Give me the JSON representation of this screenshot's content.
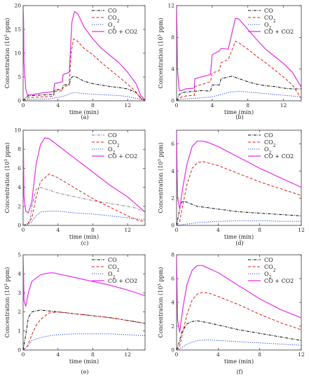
{
  "chart_data": [
    {
      "type": "line",
      "panel_label": "(a)",
      "xlabel": "time (min)",
      "ylabel": "Concentration (10³ ppm)",
      "xlim": [
        0,
        14
      ],
      "ylim": [
        0,
        20
      ],
      "xticks": [
        "0",
        "4",
        "8",
        "12"
      ],
      "yticks": [
        "0",
        "5",
        "10",
        "15",
        "20"
      ],
      "legend_position": "top-right",
      "series": [
        {
          "name": "CO",
          "color": "#000000",
          "dash": "dashdot",
          "x": [
            0,
            0.2,
            0.5,
            1,
            2,
            3,
            3.5,
            3.6,
            4.5,
            4.6,
            5.3,
            5.5,
            5.8,
            6.2,
            7,
            8,
            9,
            10,
            11,
            12,
            13,
            13.5,
            14
          ],
          "y": [
            0,
            0.5,
            1.0,
            1.1,
            1.2,
            1.3,
            1.4,
            2.3,
            2.4,
            3.3,
            3.5,
            4.8,
            5.2,
            4.9,
            4.1,
            3.6,
            3.3,
            3.0,
            2.8,
            2.5,
            1.7,
            0.6,
            0.1
          ]
        },
        {
          "name": "CO2",
          "color": "#e0201b",
          "dash": "dashed",
          "x": [
            0,
            0.2,
            0.5,
            1,
            2,
            3,
            3.5,
            3.6,
            4.5,
            4.6,
            5.3,
            5.5,
            5.8,
            6.2,
            7,
            8,
            9,
            10,
            11,
            12,
            13,
            13.5,
            14
          ],
          "y": [
            0,
            0.3,
            0.6,
            0.7,
            0.8,
            0.9,
            1.0,
            2.0,
            2.1,
            3.0,
            3.2,
            10.0,
            13.0,
            12.6,
            11.0,
            9.7,
            8.0,
            6.5,
            5.0,
            3.5,
            1.8,
            0.5,
            0.1
          ]
        },
        {
          "name": "O2",
          "color": "#1e3fd6",
          "dash": "dotted",
          "x": [
            0,
            0.3,
            1,
            3,
            3.6,
            4.6,
            5.5,
            6,
            7,
            9,
            11,
            12,
            13,
            14
          ],
          "y": [
            0,
            0.2,
            0.3,
            0.4,
            0.6,
            0.9,
            1.6,
            1.7,
            1.5,
            1.3,
            1.1,
            0.9,
            0.5,
            0.1
          ]
        },
        {
          "name": "CO + CO2",
          "color": "#e52ce5",
          "dash": "solid",
          "x": [
            0,
            0.05,
            0.1,
            0.3,
            0.5,
            1,
            2,
            3,
            3.5,
            3.6,
            4.5,
            4.6,
            5.3,
            5.6,
            5.9,
            6.3,
            7,
            8,
            9,
            10,
            11,
            12,
            13,
            13.5,
            14
          ],
          "y": [
            20,
            17,
            8,
            2.5,
            1.2,
            1.3,
            1.6,
            1.8,
            2.0,
            3.6,
            4.0,
            5.5,
            6.0,
            16.5,
            18.8,
            18.2,
            15.5,
            13.0,
            11.0,
            9.5,
            8.0,
            6.0,
            3.5,
            1.1,
            0.2
          ]
        }
      ]
    },
    {
      "type": "line",
      "panel_label": "(b)",
      "xlabel": "time (min)",
      "ylabel": "Concentration (10³ ppm)",
      "xlim": [
        0,
        14
      ],
      "ylim": [
        0,
        12
      ],
      "xticks": [
        "0",
        "4",
        "8",
        "12"
      ],
      "yticks": [
        "0",
        "4",
        "8",
        "12"
      ],
      "legend_position": "top-right",
      "series": [
        {
          "name": "CO",
          "color": "#000000",
          "dash": "dashdot",
          "x": [
            0,
            0.3,
            0.6,
            1,
            2,
            3,
            3.8,
            4,
            4.8,
            5,
            5.8,
            6.2,
            7,
            8,
            9,
            10,
            11,
            12,
            13,
            14
          ],
          "y": [
            0,
            0.8,
            1.0,
            1.1,
            1.2,
            1.3,
            1.2,
            2.0,
            2.0,
            2.8,
            3.0,
            3.1,
            2.8,
            2.4,
            2.1,
            1.9,
            1.8,
            1.6,
            1.5,
            1.5
          ]
        },
        {
          "name": "CO2",
          "color": "#e0201b",
          "dash": "dashed",
          "x": [
            0,
            0.3,
            0.6,
            1,
            2,
            2.05,
            3.8,
            4,
            4.8,
            5,
            5.8,
            6.6,
            7,
            8,
            9,
            10,
            11,
            12,
            13,
            14
          ],
          "y": [
            0,
            0.3,
            0.5,
            0.6,
            0.7,
            1.8,
            2.4,
            3.5,
            3.8,
            4.8,
            5.2,
            7.5,
            7.3,
            6.5,
            5.6,
            4.8,
            3.9,
            3.0,
            2.0,
            0.3
          ]
        },
        {
          "name": "O2",
          "color": "#1e3fd6",
          "dash": "dotted",
          "x": [
            0,
            0.5,
            2,
            4,
            5,
            6,
            7,
            8,
            10,
            12,
            13,
            14
          ],
          "y": [
            0,
            0.2,
            0.3,
            0.5,
            0.8,
            1.1,
            1.2,
            1.1,
            0.9,
            0.7,
            0.6,
            0.5
          ]
        },
        {
          "name": "CO + CO2",
          "color": "#e52ce5",
          "dash": "solid",
          "x": [
            0,
            0.05,
            0.1,
            0.3,
            0.6,
            1,
            2,
            2.05,
            3.8,
            4,
            4.8,
            5,
            5.8,
            6.6,
            7,
            8,
            9,
            10,
            11,
            12,
            13,
            14
          ],
          "y": [
            12,
            9,
            4,
            1.3,
            1.3,
            1.5,
            1.6,
            2.8,
            3.3,
            5.8,
            6.3,
            6.6,
            6.5,
            10.4,
            10.3,
            9.0,
            7.7,
            6.5,
            5.6,
            4.7,
            3.6,
            1.7
          ]
        }
      ]
    },
    {
      "type": "line",
      "panel_label": "(c)",
      "xlabel": "time (min)",
      "ylabel": "Concentration (10³ ppm)",
      "xlim": [
        0,
        14
      ],
      "ylim": [
        0,
        10
      ],
      "xticks": [
        "0",
        "4",
        "8",
        "12"
      ],
      "yticks": [
        "0",
        "2",
        "4",
        "6",
        "8",
        "10"
      ],
      "legend_position": "top-right",
      "series": [
        {
          "name": "CO",
          "color": "#808080",
          "dash": "dashdot",
          "x": [
            0,
            0.5,
            0.8,
            1,
            1.5,
            2,
            3,
            4,
            6,
            8,
            10,
            12,
            13,
            14
          ],
          "y": [
            0,
            0.2,
            0.5,
            2.0,
            3.8,
            4.0,
            3.7,
            3.4,
            3.0,
            2.6,
            2.3,
            2.0,
            1.8,
            1.4
          ]
        },
        {
          "name": "CO2",
          "color": "#e0201b",
          "dash": "dashed",
          "x": [
            0,
            0.5,
            1,
            1.5,
            2,
            3,
            4,
            6,
            8,
            10,
            12,
            13,
            14
          ],
          "y": [
            0,
            0.1,
            0.8,
            3.0,
            4.6,
            5.4,
            5.0,
            3.9,
            2.8,
            1.9,
            1.0,
            0.6,
            0.4
          ]
        },
        {
          "name": "O2",
          "color": "#1e3fd6",
          "dash": "dotted",
          "x": [
            0,
            0.5,
            1,
            1.5,
            2,
            3,
            4,
            6,
            8,
            10,
            12,
            14
          ],
          "y": [
            0,
            0.1,
            0.4,
            1.0,
            1.4,
            1.5,
            1.5,
            1.3,
            1.2,
            1.0,
            0.8,
            0.6
          ]
        },
        {
          "name": "CO + CO2",
          "color": "#e52ce5",
          "dash": "solid",
          "x": [
            0,
            0.05,
            0.1,
            0.3,
            0.6,
            1,
            1.5,
            2,
            2.5,
            3,
            4,
            6,
            8,
            10,
            12,
            13,
            14
          ],
          "y": [
            10,
            7,
            3,
            1.5,
            1.3,
            2.5,
            6.5,
            8.5,
            9.2,
            9.1,
            8.4,
            7.0,
            5.6,
            4.2,
            3.0,
            2.2,
            1.4
          ]
        }
      ]
    },
    {
      "type": "line",
      "panel_label": "(d)",
      "xlabel": "time (min)",
      "ylabel": "Concentration (10³ ppm)",
      "xlim": [
        0,
        12
      ],
      "ylim": [
        0,
        7
      ],
      "xticks": [
        "0",
        "4",
        "8",
        "12"
      ],
      "yticks": [
        "0",
        "2",
        "4",
        "6"
      ],
      "legend_position": "top-right",
      "series": [
        {
          "name": "CO",
          "color": "#000000",
          "dash": "dashdot",
          "x": [
            0,
            0.2,
            0.4,
            0.6,
            1,
            2,
            4,
            6,
            8,
            10,
            12
          ],
          "y": [
            0,
            0.8,
            1.6,
            1.8,
            1.7,
            1.4,
            1.2,
            1.0,
            0.9,
            0.8,
            0.7
          ]
        },
        {
          "name": "CO2",
          "color": "#e0201b",
          "dash": "dashed",
          "x": [
            0,
            0.3,
            0.6,
            1,
            1.5,
            2,
            2.5,
            3,
            4,
            6,
            8,
            10,
            12
          ],
          "y": [
            0,
            0.3,
            1.5,
            3.0,
            4.2,
            4.6,
            4.7,
            4.6,
            4.4,
            3.8,
            3.2,
            2.7,
            2.2
          ]
        },
        {
          "name": "O2",
          "color": "#1e3fd6",
          "dash": "dotted",
          "x": [
            0,
            0.5,
            1,
            2,
            4,
            6,
            8,
            10,
            12
          ],
          "y": [
            0,
            0.05,
            0.1,
            0.2,
            0.3,
            0.35,
            0.35,
            0.3,
            0.3
          ]
        },
        {
          "name": "CO + CO2",
          "color": "#e52ce5",
          "dash": "solid",
          "x": [
            0,
            0.05,
            0.1,
            0.3,
            0.6,
            1,
            1.5,
            2,
            2.5,
            3,
            4,
            6,
            8,
            10,
            12
          ],
          "y": [
            7,
            4,
            2,
            1.2,
            2.8,
            4.5,
            5.8,
            6.2,
            6.2,
            6.1,
            5.8,
            5.0,
            4.2,
            3.5,
            2.8
          ]
        }
      ]
    },
    {
      "type": "line",
      "panel_label": "(e)",
      "xlabel": "time (min)",
      "ylabel": "Concentration (10³ ppm)",
      "xlim": [
        0,
        14
      ],
      "ylim": [
        0,
        5
      ],
      "xticks": [
        "0",
        "4",
        "8",
        "12"
      ],
      "yticks": [
        "0",
        "1",
        "2",
        "3",
        "4",
        "5"
      ],
      "legend_position": "top-right",
      "series": [
        {
          "name": "CO",
          "color": "#000000",
          "dash": "dashdot",
          "x": [
            0,
            0.3,
            0.6,
            1,
            1.5,
            2,
            3,
            4,
            6,
            8,
            10,
            12,
            14
          ],
          "y": [
            0,
            0.8,
            1.7,
            2.0,
            2.05,
            2.1,
            2.05,
            2.0,
            1.9,
            1.8,
            1.7,
            1.55,
            1.4
          ]
        },
        {
          "name": "CO2",
          "color": "#e0201b",
          "dash": "dashed",
          "x": [
            0,
            0.5,
            1,
            1.5,
            2,
            3,
            4,
            5,
            6,
            8,
            10,
            12,
            14
          ],
          "y": [
            0,
            0.2,
            0.8,
            1.3,
            1.6,
            1.95,
            2.0,
            1.95,
            1.9,
            1.8,
            1.7,
            1.55,
            1.4
          ]
        },
        {
          "name": "O2",
          "color": "#1e3fd6",
          "dash": "dotted",
          "x": [
            0,
            0.5,
            1,
            2,
            3,
            4,
            6,
            8,
            10,
            12,
            14
          ],
          "y": [
            0,
            0.2,
            0.5,
            0.65,
            0.75,
            0.8,
            0.85,
            0.85,
            0.85,
            0.8,
            0.75
          ]
        },
        {
          "name": "CO + CO2",
          "color": "#e52ce5",
          "dash": "solid",
          "x": [
            0,
            0.05,
            0.1,
            0.3,
            0.6,
            1,
            2,
            3,
            3.5,
            4,
            6,
            8,
            10,
            12,
            14
          ],
          "y": [
            5,
            4,
            2.6,
            2.3,
            3.0,
            3.6,
            3.95,
            4.05,
            4.05,
            4.0,
            3.8,
            3.6,
            3.4,
            3.15,
            2.85
          ]
        }
      ]
    },
    {
      "type": "line",
      "panel_label": "(f)",
      "xlabel": "time (min)",
      "ylabel": "Concentration (10³ ppm)",
      "xlim": [
        0,
        12
      ],
      "ylim": [
        0,
        8
      ],
      "xticks": [
        "0",
        "4",
        "8",
        "12"
      ],
      "yticks": [
        "0",
        "2",
        "4",
        "6",
        "8"
      ],
      "legend_position": "top-right",
      "series": [
        {
          "name": "CO",
          "color": "#000000",
          "dash": "dashdot",
          "x": [
            0,
            0.2,
            0.5,
            1,
            1.5,
            2,
            3,
            4,
            6,
            8,
            10,
            12
          ],
          "y": [
            0,
            0.5,
            1.5,
            2.2,
            2.4,
            2.45,
            2.3,
            2.1,
            1.7,
            1.4,
            1.1,
            0.8
          ]
        },
        {
          "name": "CO2",
          "color": "#e0201b",
          "dash": "dashed",
          "x": [
            0,
            0.3,
            0.6,
            1,
            1.5,
            2,
            2.5,
            3,
            4,
            6,
            8,
            10,
            12
          ],
          "y": [
            0,
            0.3,
            1.5,
            3.0,
            4.2,
            4.7,
            4.85,
            4.8,
            4.5,
            3.8,
            3.0,
            2.3,
            1.7
          ]
        },
        {
          "name": "O2",
          "color": "#1e3fd6",
          "dash": "dotted",
          "x": [
            0,
            0.5,
            1,
            2,
            3,
            4,
            6,
            8,
            10,
            12
          ],
          "y": [
            0,
            0.2,
            0.5,
            0.8,
            0.85,
            0.8,
            0.7,
            0.6,
            0.5,
            0.4
          ]
        },
        {
          "name": "CO + CO2",
          "color": "#e52ce5",
          "dash": "solid",
          "x": [
            0,
            0.05,
            0.1,
            0.3,
            0.6,
            1,
            1.5,
            2,
            2.5,
            3,
            4,
            6,
            8,
            10,
            12
          ],
          "y": [
            8,
            5,
            2.5,
            1.5,
            3.5,
            5.5,
            6.7,
            7.1,
            7.1,
            6.9,
            6.5,
            5.4,
            4.3,
            3.4,
            2.7
          ]
        }
      ]
    }
  ]
}
